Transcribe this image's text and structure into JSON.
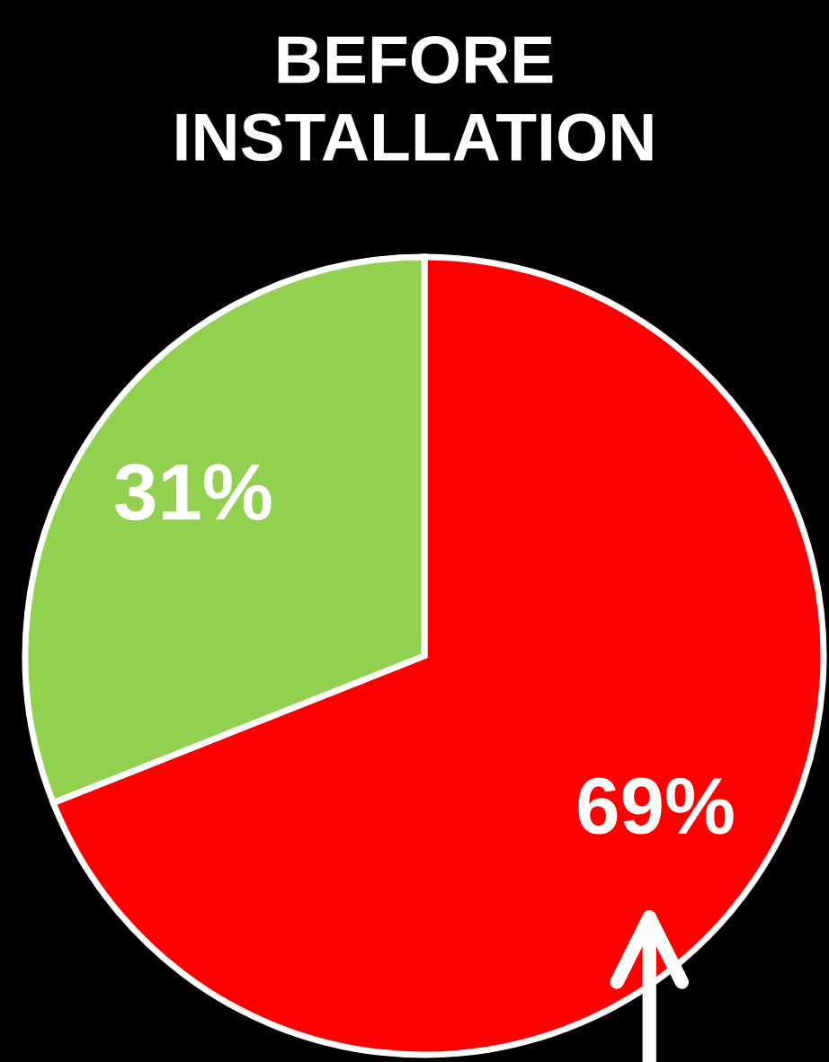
{
  "chart_data": {
    "type": "pie",
    "title": "BEFORE\nINSTALLATION",
    "categories": [
      null,
      null
    ],
    "values": [
      69,
      31
    ],
    "colors": [
      "#ff0000",
      "#92d050"
    ],
    "value_labels": [
      "69%",
      "31%"
    ]
  }
}
